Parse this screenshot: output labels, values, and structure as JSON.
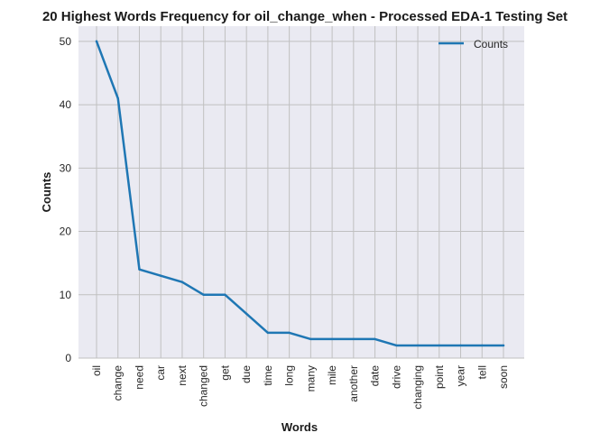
{
  "chart_data": {
    "type": "line",
    "title": "20 Highest Words Frequency for oil_change_when - Processed EDA-1 Testing Set",
    "xlabel": "Words",
    "ylabel": "Counts",
    "categories": [
      "oil",
      "change",
      "need",
      "car",
      "next",
      "changed",
      "get",
      "due",
      "time",
      "long",
      "many",
      "mile",
      "another",
      "date",
      "drive",
      "changing",
      "point",
      "year",
      "tell",
      "soon"
    ],
    "series": [
      {
        "name": "Counts",
        "color": "#1f77b4",
        "values": [
          50,
          41,
          14,
          13,
          12,
          10,
          10,
          7,
          4,
          4,
          3,
          3,
          3,
          3,
          2,
          2,
          2,
          2,
          2,
          2
        ]
      }
    ],
    "ylim": [
      0,
      52.4
    ],
    "yticks": [
      0,
      10,
      20,
      30,
      40,
      50
    ],
    "grid": true,
    "legend_position": "top-right",
    "plot_background": "#eaeaf2",
    "grid_color": "#c0c0c0"
  }
}
